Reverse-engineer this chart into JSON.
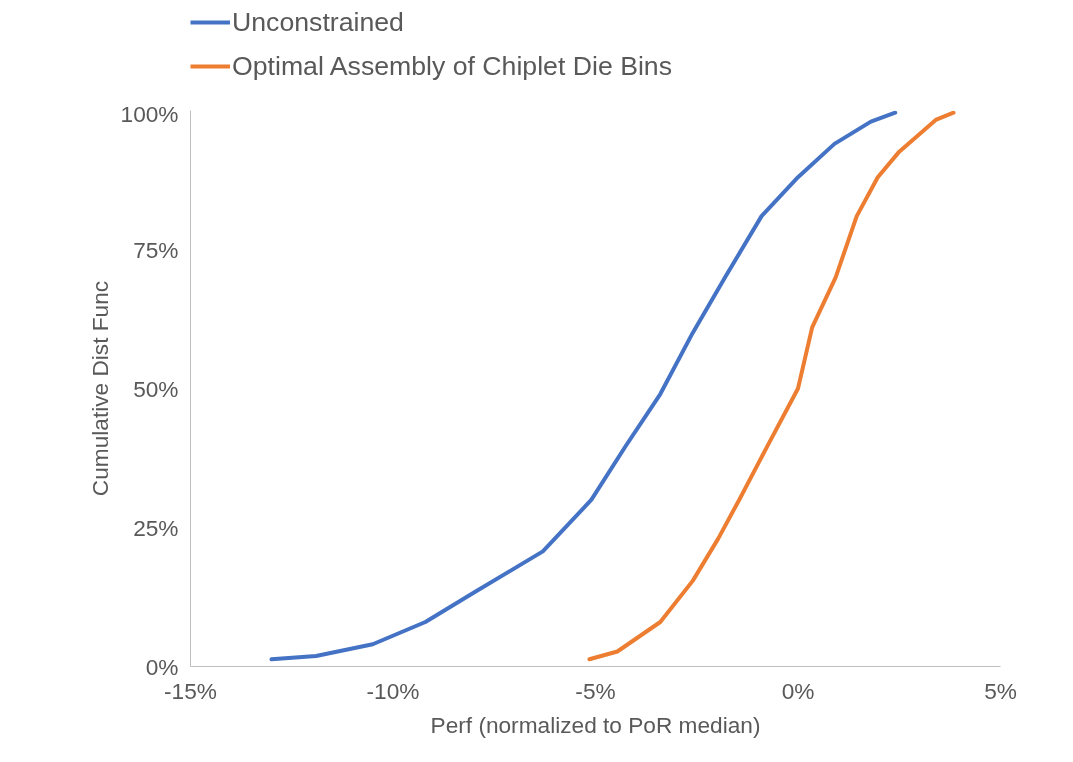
{
  "chart_data": {
    "type": "line",
    "xlabel": "Perf (normalized to PoR median)",
    "ylabel": "Cumulative Dist Func",
    "xlim": [
      -15,
      5
    ],
    "ylim": [
      0,
      100
    ],
    "xticks": [
      {
        "value": -15,
        "label": "-15%"
      },
      {
        "value": -10,
        "label": "-10%"
      },
      {
        "value": -5,
        "label": "-5%"
      },
      {
        "value": 0,
        "label": "0%"
      },
      {
        "value": 5,
        "label": "5%"
      }
    ],
    "yticks": [
      {
        "value": 0,
        "label": "0%"
      },
      {
        "value": 25,
        "label": "25%"
      },
      {
        "value": 50,
        "label": "50%"
      },
      {
        "value": 75,
        "label": "75%"
      },
      {
        "value": 100,
        "label": "100%"
      }
    ],
    "grid": false,
    "legend": "top left",
    "marker": "none",
    "line_style": "solid",
    "series": [
      {
        "name": "Unconstrained",
        "color": "#4472c4",
        "x": [
          -13.0,
          -11.9,
          -10.5,
          -9.2,
          -8.0,
          -6.3,
          -5.1,
          -4.25,
          -3.4,
          -2.6,
          -1.8,
          -0.9,
          0,
          0.9,
          1.8,
          2.4
        ],
        "values": [
          1.3,
          1.9,
          4,
          8,
          13.3,
          20.7,
          30,
          39.7,
          49,
          60,
          70,
          81,
          88,
          94,
          98,
          99.6
        ]
      },
      {
        "name": "Optimal Assembly of Chiplet Die Bins",
        "color": "#ed7d31",
        "x": [
          -5.15,
          -4.46,
          -3.4,
          -2.6,
          -1.97,
          -1.45,
          -0.73,
          0,
          0.35,
          0.93,
          1.45,
          1.97,
          2.5,
          3.4,
          3.84
        ],
        "values": [
          1.3,
          2.7,
          8,
          15.4,
          23,
          30,
          40,
          50,
          61,
          70,
          81,
          88,
          92.6,
          98.3,
          99.6
        ]
      }
    ]
  }
}
